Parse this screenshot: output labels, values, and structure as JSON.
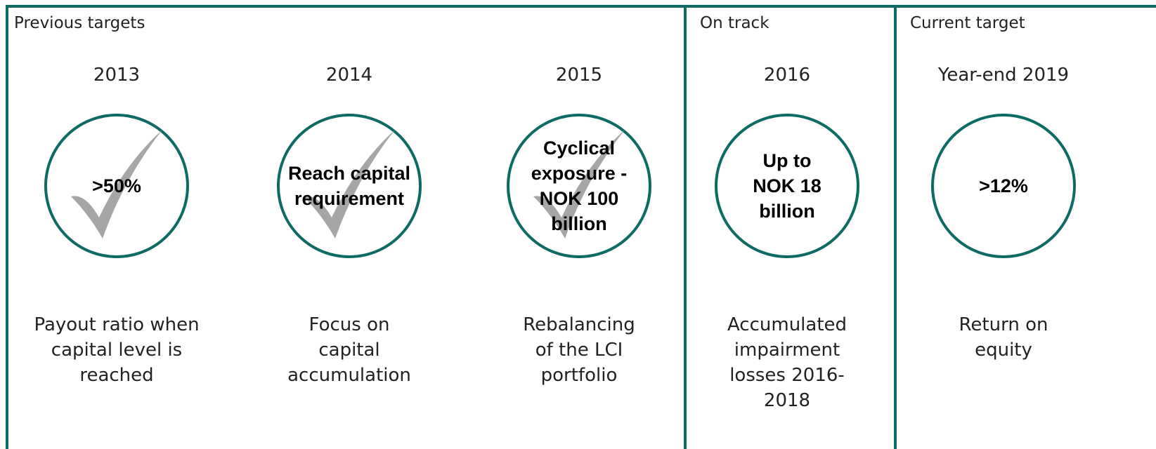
{
  "sections": [
    {
      "label": "Previous targets",
      "items": [
        {
          "year": "2013",
          "target": ">50%",
          "description": "Payout ratio when capital level is reached"
        },
        {
          "year": "2014",
          "target": "Reach capital requirement",
          "description": "Focus on capital accumulation"
        },
        {
          "year": "2015",
          "target": "Cyclical exposure - NOK 100 billion",
          "description": "Rebalancing of the LCI portfolio"
        }
      ]
    },
    {
      "label": "On track",
      "items": [
        {
          "year": "2016",
          "target": "Up to NOK 18 billion",
          "description": "Accumulated impairment losses 2016-2018"
        }
      ]
    },
    {
      "label": "Current target",
      "items": [
        {
          "year": "Year-end 2019",
          "target": ">12%",
          "description": "Return on equity"
        }
      ]
    }
  ]
}
